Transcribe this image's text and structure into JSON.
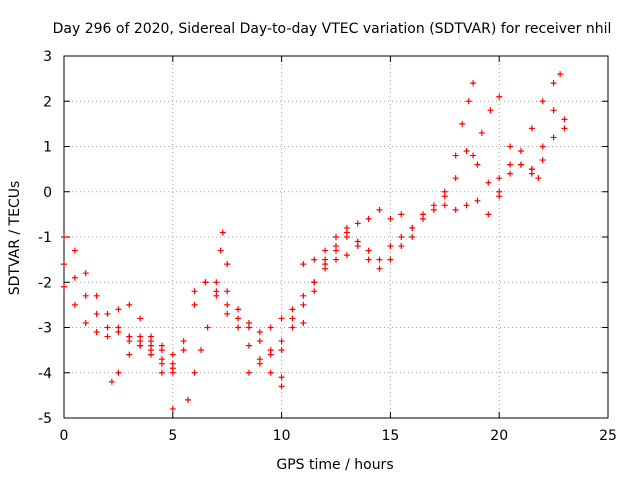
{
  "chart_data": {
    "type": "scatter",
    "title": "Day 296 of 2020, Sidereal Day-to-day VTEC variation (SDTVAR) for receiver nhil",
    "xlabel": "GPS time / hours",
    "ylabel": "SDTVAR / TECUs",
    "xlim": [
      0,
      25
    ],
    "ylim": [
      -5,
      3
    ],
    "x_ticks": [
      "0",
      "5",
      "10",
      "15",
      "20",
      "25"
    ],
    "y_ticks": [
      "3",
      "2",
      "1",
      "0",
      "-1",
      "-2",
      "-3",
      "-4",
      "-5"
    ],
    "grid": true,
    "marker": "+",
    "color": "#ff0000",
    "series": [
      {
        "x": [
          0.0,
          0.5,
          1.0,
          1.5,
          2.0,
          2.5,
          3.0,
          3.5,
          4.0,
          4.5,
          5.0,
          5.5,
          6.0,
          6.5,
          7.0,
          7.5,
          8.0,
          8.5,
          9.0,
          9.5,
          10.0
        ],
        "y": [
          -1.0,
          -1.3,
          -1.8,
          -2.3,
          -2.7,
          -3.0,
          -3.2,
          -3.3,
          -3.5,
          -3.7,
          -4.0,
          -3.5,
          -2.5,
          -2.0,
          -2.2,
          -2.5,
          -2.8,
          -3.0,
          -3.3,
          -3.6,
          -4.1
        ]
      },
      {
        "x": [
          0.0,
          0.5,
          1.0,
          1.5,
          2.0,
          2.5,
          3.0,
          3.5,
          4.0,
          4.5,
          5.0,
          5.5,
          6.0,
          6.5,
          7.0,
          7.5,
          8.0,
          8.5,
          9.0,
          9.5,
          10.0
        ],
        "y": [
          -1.6,
          -1.9,
          -2.3,
          -2.7,
          -3.0,
          -3.1,
          -3.2,
          -3.4,
          -3.6,
          -3.8,
          -3.9,
          -3.3,
          -2.2,
          -2.0,
          -2.3,
          -2.7,
          -3.0,
          -3.4,
          -3.7,
          -4.0,
          -4.3
        ]
      },
      {
        "x": [
          0.0,
          0.5,
          1.0,
          1.5,
          2.0,
          2.5,
          3.0,
          3.5,
          4.0,
          4.5,
          5.0
        ],
        "y": [
          -2.1,
          -2.5,
          -2.9,
          -3.1,
          -3.2,
          -2.6,
          -2.5,
          -2.8,
          -3.2,
          -3.5,
          -3.8
        ]
      },
      {
        "x": [
          2.2,
          2.5,
          3.0,
          3.5,
          4.0,
          4.5,
          5.0
        ],
        "y": [
          -4.2,
          -4.0,
          -3.6,
          -3.4,
          -3.3,
          -3.4,
          -3.6
        ]
      },
      {
        "x": [
          3.0,
          3.5,
          4.0,
          4.5,
          5.0
        ],
        "y": [
          -3.3,
          -3.2,
          -3.4,
          -4.0,
          -4.8
        ]
      },
      {
        "x": [
          5.7,
          6.0,
          6.3,
          6.6,
          7.0,
          7.2,
          7.3,
          7.5
        ],
        "y": [
          -4.6,
          -4.0,
          -3.5,
          -3.0,
          -2.0,
          -1.3,
          -0.9,
          -1.6
        ]
      },
      {
        "x": [
          7.5,
          8.0,
          8.5,
          9.0,
          9.5,
          10.0,
          10.5,
          11.0,
          11.5,
          12.0
        ],
        "y": [
          -2.2,
          -2.6,
          -2.9,
          -3.1,
          -3.0,
          -2.8,
          -2.6,
          -2.9,
          -2.2,
          -1.6
        ]
      },
      {
        "x": [
          8.5,
          9.0,
          9.5,
          10.0,
          10.5,
          11.0,
          11.5,
          12.0,
          12.5,
          13.0
        ],
        "y": [
          -4.0,
          -3.8,
          -3.5,
          -3.3,
          -2.8,
          -2.3,
          -2.0,
          -1.7,
          -1.5,
          -1.4
        ]
      },
      {
        "x": [
          10.0,
          10.5,
          11.0,
          11.5,
          12.0,
          12.5,
          13.0,
          13.5,
          14.0
        ],
        "y": [
          -3.5,
          -3.0,
          -2.5,
          -2.0,
          -1.5,
          -1.2,
          -0.9,
          -0.7,
          -0.6
        ]
      },
      {
        "x": [
          11.0,
          11.5,
          12.0,
          12.5,
          13.0,
          13.5,
          14.0,
          14.5,
          15.0,
          15.5,
          16.0
        ],
        "y": [
          -1.6,
          -1.5,
          -1.3,
          -1.0,
          -0.8,
          -1.2,
          -1.5,
          -1.7,
          -1.5,
          -1.2,
          -1.0
        ]
      },
      {
        "x": [
          12.5,
          13.0,
          13.5,
          14.0,
          14.5,
          15.0,
          15.5,
          16.0,
          16.5,
          17.0,
          17.5,
          18.0,
          18.5,
          19.0,
          19.5,
          20.0
        ],
        "y": [
          -1.3,
          -1.0,
          -1.1,
          -1.3,
          -1.5,
          -1.2,
          -1.0,
          -0.8,
          -0.5,
          -0.3,
          -0.1,
          0.3,
          0.9,
          0.6,
          0.2,
          -0.1
        ]
      },
      {
        "x": [
          14.5,
          15.0,
          15.5,
          16.0,
          16.5,
          17.0,
          17.5,
          18.0,
          18.5,
          19.0,
          19.5,
          20.0,
          20.5,
          21.0,
          21.5,
          22.0,
          22.5,
          23.0
        ],
        "y": [
          -0.4,
          -0.6,
          -0.5,
          -0.8,
          -0.6,
          -0.4,
          -0.3,
          -0.4,
          -0.3,
          -0.2,
          -0.5,
          0.0,
          0.4,
          0.6,
          0.5,
          0.7,
          1.2,
          1.6
        ]
      },
      {
        "x": [
          17.5,
          18.0,
          18.3,
          18.6,
          18.8
        ],
        "y": [
          0.0,
          0.8,
          1.5,
          2.0,
          2.4
        ]
      },
      {
        "x": [
          18.8,
          19.2,
          19.6,
          20.0,
          20.5,
          21.0,
          21.5,
          21.8
        ],
        "y": [
          0.8,
          1.3,
          1.8,
          2.1,
          1.0,
          0.6,
          0.4,
          0.3
        ]
      },
      {
        "x": [
          20.0,
          20.5,
          21.0,
          21.5,
          22.0,
          22.5,
          22.8
        ],
        "y": [
          0.3,
          0.6,
          0.9,
          1.4,
          2.0,
          2.4,
          2.6
        ]
      },
      {
        "x": [
          21.5,
          22.0,
          22.5,
          23.0
        ],
        "y": [
          0.5,
          1.0,
          1.8,
          1.4
        ]
      }
    ]
  }
}
